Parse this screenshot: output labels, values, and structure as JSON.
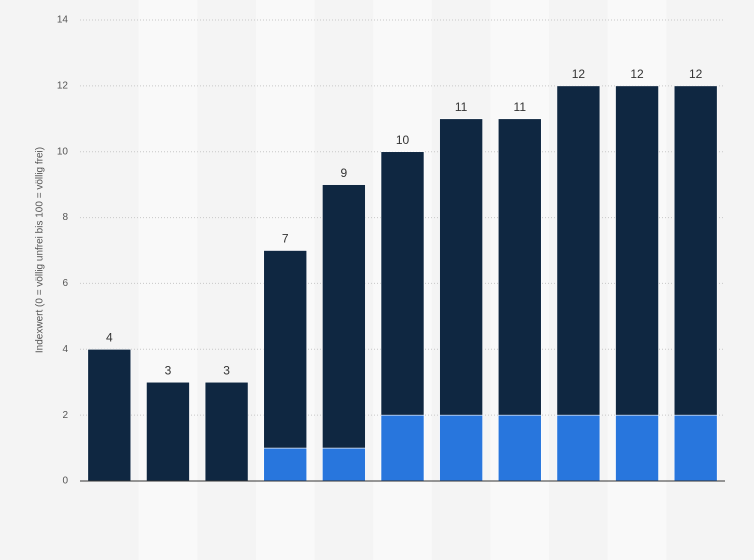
{
  "chart_data": {
    "type": "stacked-bar",
    "y_label": "Indexwert (0 = völlig unfrei bis 100 = völlig frei)",
    "categories": [
      null,
      null,
      null,
      null,
      null,
      null,
      null,
      null,
      null,
      null,
      null
    ],
    "series": [
      {
        "color": "#2876dd",
        "values": [
          0,
          0,
          0,
          1,
          1,
          2,
          2,
          2,
          2,
          2,
          2
        ]
      },
      {
        "color": "#0f2741",
        "values": [
          4,
          3,
          3,
          6,
          8,
          8,
          9,
          9,
          10,
          10,
          10
        ]
      }
    ],
    "totals": [
      4,
      3,
      3,
      7,
      9,
      10,
      11,
      11,
      12,
      12,
      12
    ],
    "ylim": [
      0,
      14
    ],
    "yticks": [
      0,
      2,
      4,
      6,
      8,
      10,
      12,
      14
    ],
    "grid": true
  }
}
